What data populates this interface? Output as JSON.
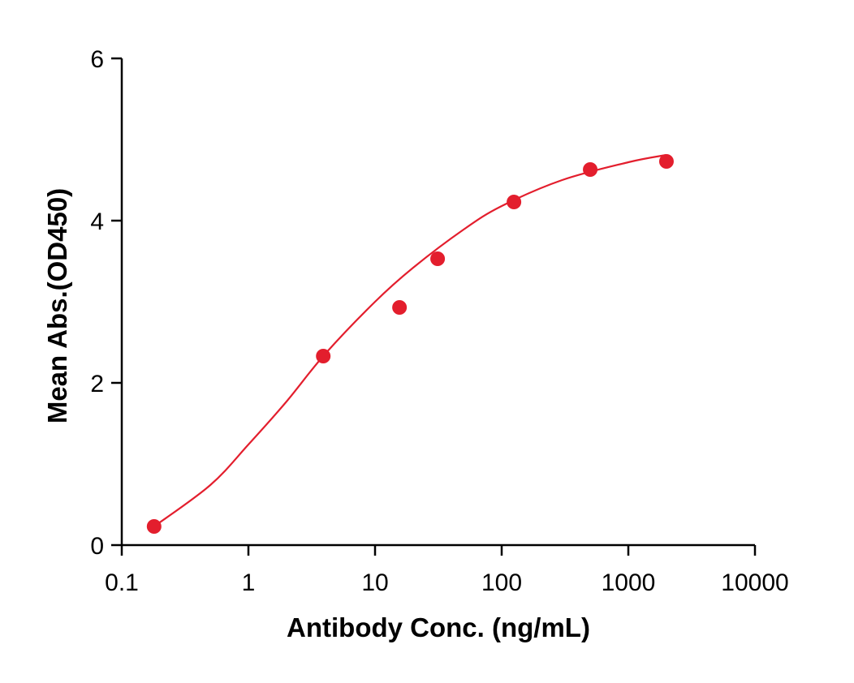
{
  "chart_data": {
    "type": "scatter",
    "x_label": "Antibody Conc. (ng/mL)",
    "y_label": "Mean Abs.(OD450)",
    "log_x": true,
    "xlim": [
      0.1,
      10000
    ],
    "xticks": [
      0.1,
      1,
      10,
      100,
      1000,
      10000
    ],
    "ylim": [
      0,
      6
    ],
    "yticks": [
      0,
      2,
      4,
      6
    ],
    "color": "#e31e2d",
    "points": {
      "x": [
        0.18,
        3.9,
        15.6,
        31.2,
        125,
        500,
        2000
      ],
      "values": [
        0.23,
        2.33,
        2.93,
        3.53,
        4.23,
        4.63,
        4.73
      ]
    },
    "fit": {
      "x": [
        0.18,
        0.5,
        1,
        2,
        4,
        10,
        20,
        50,
        100,
        300,
        1000,
        2000
      ],
      "values": [
        0.23,
        0.74,
        1.24,
        1.77,
        2.35,
        3.0,
        3.42,
        3.89,
        4.18,
        4.5,
        4.72,
        4.81
      ]
    }
  }
}
